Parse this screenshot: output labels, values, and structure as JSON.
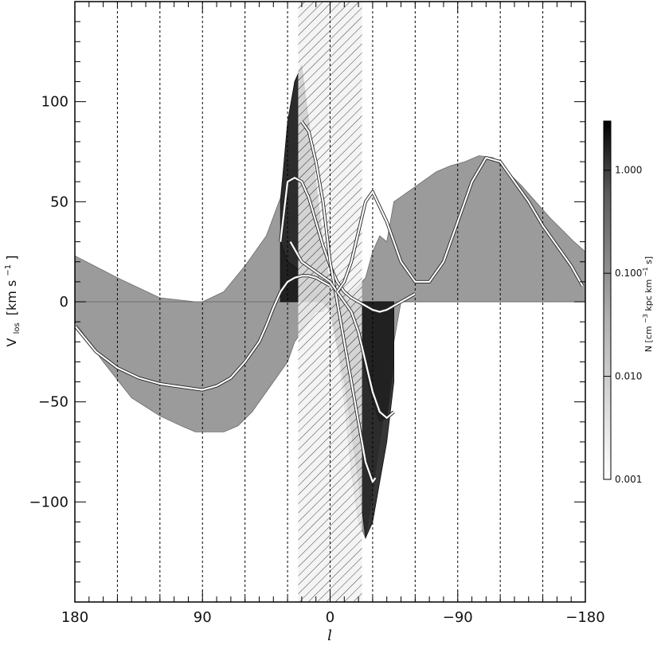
{
  "chart_data": {
    "type": "area",
    "xlabel": "l",
    "ylabel": {
      "main": "V",
      "sub": "los",
      "unit_prefix": "[km s",
      "unit_exp": "−1",
      "unit_suffix": "]"
    },
    "xlim": [
      180,
      -180
    ],
    "ylim": [
      -150,
      150
    ],
    "x_reversed": true,
    "x_ticks": [
      180,
      90,
      0,
      -90,
      -180
    ],
    "x_tick_labels": [
      "180",
      "90",
      "0",
      "−90",
      "−180"
    ],
    "x_minor_step": 10,
    "y_ticks": [
      100,
      50,
      0,
      -50,
      -100
    ],
    "y_tick_labels": [
      "100",
      "50",
      "0",
      "−50",
      "−100"
    ],
    "y_minor_step": 10,
    "dashed_longitudes": [
      150,
      120,
      90,
      60,
      30,
      0,
      -30,
      -60,
      -90,
      -120,
      -150
    ],
    "hatched_band": [
      22.5,
      -22.5
    ],
    "colorbar": {
      "scale": "log",
      "range": [
        0.001,
        3.0
      ],
      "ticks": [
        1.0,
        0.1,
        0.01,
        0.001
      ],
      "tick_labels": [
        "1.000",
        "0.100",
        "0.010",
        "0.001"
      ],
      "title": {
        "prefix": "N [cm",
        "prefix_exp": "−3",
        "middle": " kpc km",
        "middle_exp": "−1",
        "suffix": " s]"
      }
    },
    "series": [
      {
        "role": "grey-emission-upper",
        "color": "#8a8a8a",
        "x": [
          180,
          150,
          120,
          95,
          90,
          75,
          60,
          45,
          35,
          30,
          25,
          20,
          15,
          10,
          5,
          0,
          -5,
          -10,
          -15,
          -20,
          -25,
          -30,
          -35,
          -40,
          -45,
          -55,
          -65,
          -75,
          -85,
          -95,
          -105,
          -115,
          -125,
          -135,
          -145,
          -155,
          -165,
          -172,
          -180
        ],
        "y": [
          23,
          12,
          2,
          0,
          0,
          5,
          18,
          33,
          52,
          85,
          110,
          118,
          90,
          60,
          30,
          8,
          5,
          4,
          5,
          8,
          12,
          25,
          33,
          30,
          50,
          55,
          60,
          65,
          68,
          70,
          73,
          72,
          65,
          58,
          50,
          42,
          35,
          30,
          25
        ]
      },
      {
        "role": "grey-emission-lower",
        "color": "#8a8a8a",
        "x": [
          180,
          160,
          140,
          120,
          105,
          95,
          85,
          75,
          65,
          55,
          45,
          35,
          30,
          25,
          20,
          15,
          10,
          5,
          0,
          -5,
          -10,
          -15,
          -20,
          -25,
          -30,
          -35,
          -40,
          -45,
          -50,
          -60,
          -80,
          -100,
          -120,
          -140,
          -160,
          -180
        ],
        "y": [
          -10,
          -30,
          -48,
          -57,
          -62,
          -65,
          -65,
          -65,
          -62,
          -55,
          -45,
          -35,
          -30,
          -20,
          -15,
          -10,
          -5,
          -5,
          0,
          -20,
          -50,
          -85,
          -110,
          -118,
          -95,
          -70,
          -45,
          -20,
          0,
          0,
          0,
          0,
          0,
          0,
          0,
          0
        ]
      },
      {
        "role": "dark-diagonal-band-upper",
        "color": "#202020",
        "x": [
          35,
          30,
          25,
          20,
          15,
          10,
          5,
          0,
          -10,
          -20,
          -30,
          -35,
          -40,
          -45
        ],
        "y": [
          50,
          90,
          110,
          118,
          90,
          60,
          30,
          8,
          5,
          -20,
          -50,
          -60,
          -58,
          -30
        ]
      },
      {
        "role": "dark-diagonal-band-lower",
        "color": "#202020",
        "x": [
          35,
          30,
          20,
          10,
          0,
          -10,
          -20,
          -25,
          -30,
          -35,
          -40,
          -45
        ],
        "y": [
          30,
          20,
          15,
          5,
          -5,
          -40,
          -90,
          -118,
          -110,
          -90,
          -70,
          -40
        ]
      },
      {
        "role": "white-spiral-arm-1",
        "color": "#ffffff",
        "x": [
          180,
          165,
          150,
          135,
          120,
          110,
          100,
          90,
          80,
          70,
          60,
          50,
          45,
          40,
          35,
          30,
          25,
          20,
          15,
          10,
          5,
          0
        ],
        "y": [
          -12,
          -25,
          -33,
          -38,
          -41,
          -42,
          -43,
          -44,
          -42,
          -38,
          -30,
          -20,
          -12,
          -3,
          5,
          10,
          12,
          13,
          13,
          12,
          10,
          8
        ]
      },
      {
        "role": "white-spiral-arm-2",
        "color": "#ffffff",
        "x": [
          35,
          30,
          25,
          20,
          15,
          10,
          5,
          0,
          -5,
          -10,
          -15,
          -20,
          -25,
          -30,
          -35,
          -40,
          -45,
          -50,
          -55,
          -60
        ],
        "y": [
          30,
          60,
          62,
          60,
          52,
          40,
          28,
          18,
          10,
          5,
          2,
          0,
          -2,
          -4,
          -5,
          -4,
          -2,
          0,
          2,
          4
        ]
      },
      {
        "role": "white-spiral-arm-3",
        "color": "#ffffff",
        "x": [
          20,
          15,
          10,
          5,
          0,
          -5,
          -10,
          -15,
          -20,
          -25,
          -30,
          -32
        ],
        "y": [
          90,
          85,
          70,
          50,
          20,
          0,
          -20,
          -40,
          -60,
          -80,
          -90,
          -88
        ]
      },
      {
        "role": "white-spiral-arm-4",
        "color": "#ffffff",
        "x": [
          28,
          20,
          10,
          0,
          -5,
          -10,
          -15,
          -20,
          -25,
          -30,
          -35,
          -40,
          -45
        ],
        "y": [
          30,
          20,
          15,
          10,
          5,
          0,
          -5,
          -15,
          -30,
          -45,
          -55,
          -58,
          -55
        ]
      },
      {
        "role": "white-spiral-arm-5",
        "color": "#ffffff",
        "x": [
          -5,
          -10,
          -15,
          -20,
          -25,
          -30,
          -40,
          -50,
          -60,
          -70,
          -80,
          -90,
          -100,
          -110,
          -120,
          -130,
          -140,
          -150,
          -160,
          -170,
          -178
        ],
        "y": [
          5,
          10,
          20,
          35,
          50,
          55,
          40,
          20,
          10,
          10,
          20,
          40,
          60,
          72,
          70,
          60,
          50,
          38,
          28,
          18,
          8
        ]
      }
    ]
  }
}
